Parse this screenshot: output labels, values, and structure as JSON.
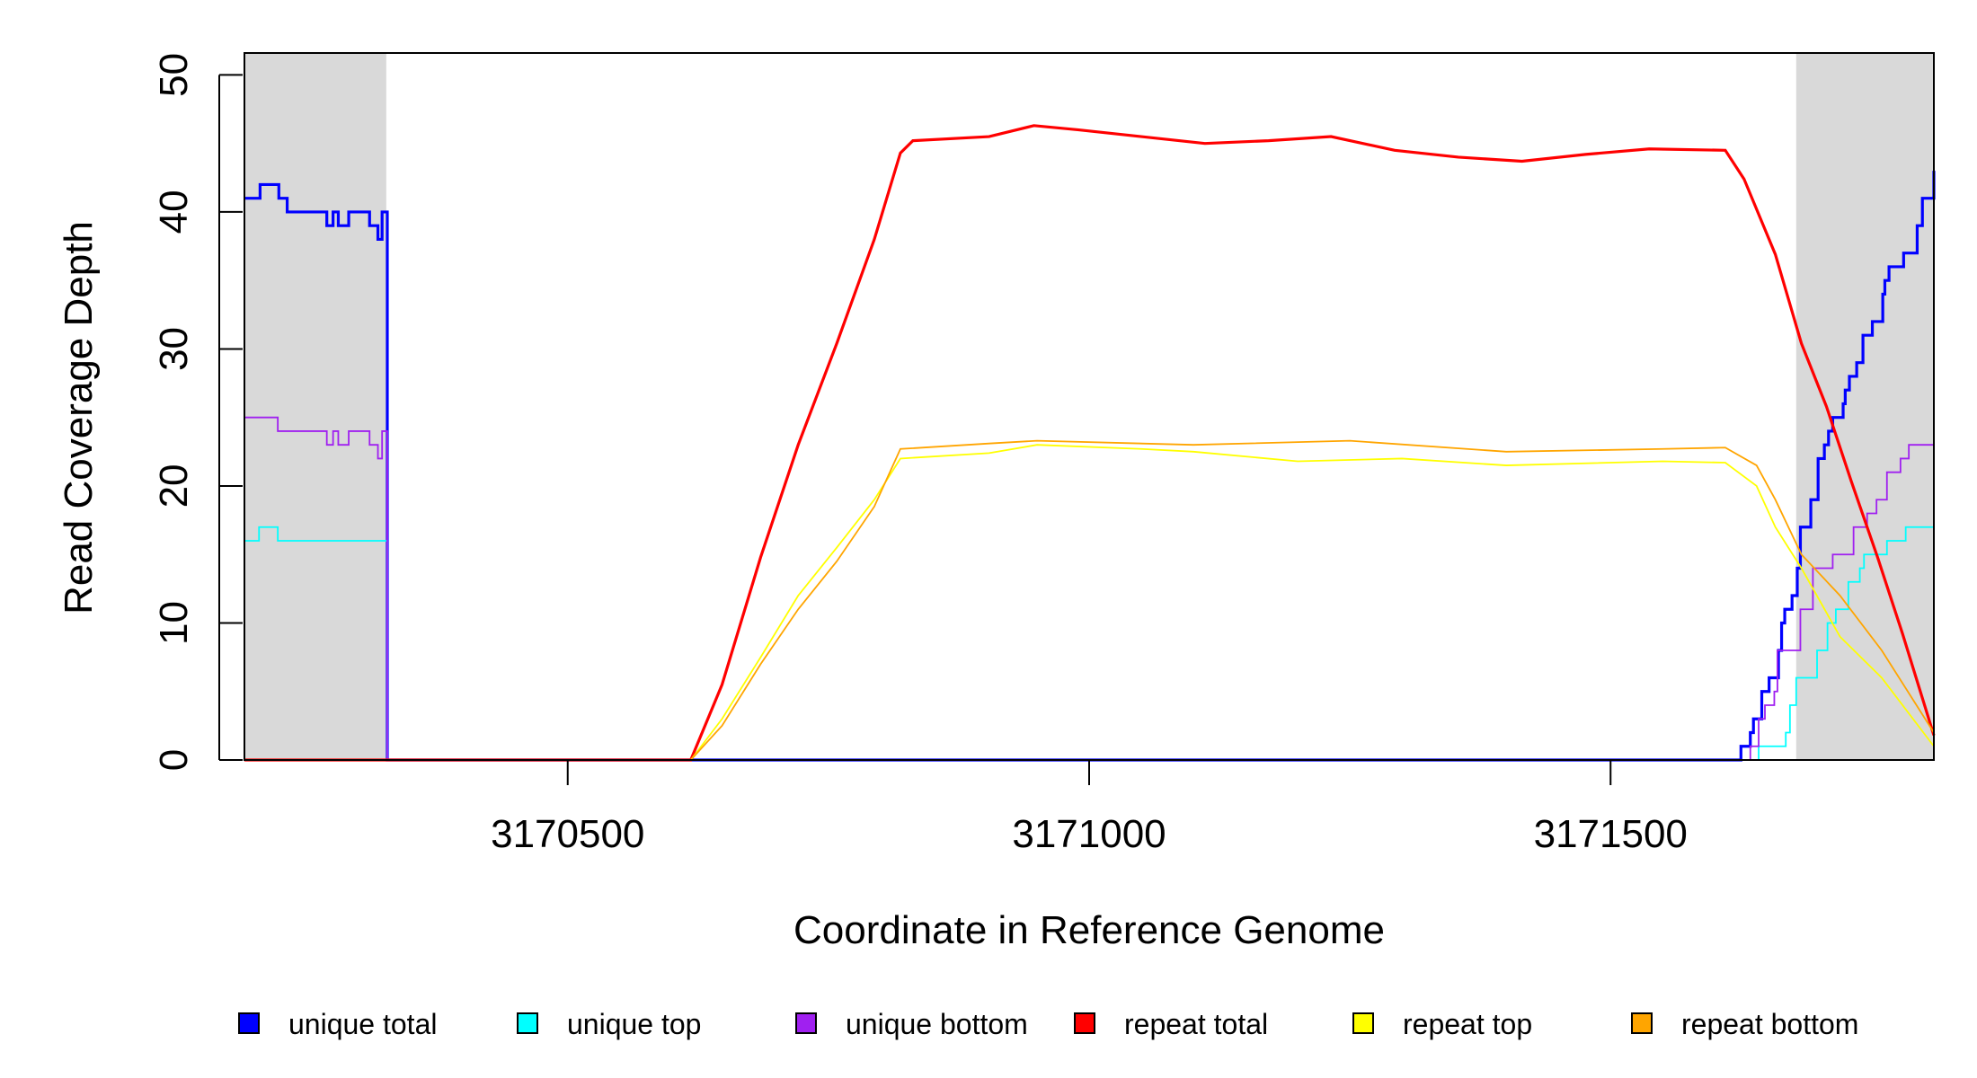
{
  "chart_data": {
    "type": "line",
    "title": "",
    "xlabel": "Coordinate in Reference Genome",
    "ylabel": "Read Coverage Depth",
    "xlim": [
      3170190,
      3171810
    ],
    "ylim": [
      0,
      51.6
    ],
    "x_ticks": [
      3170500,
      3171000,
      3171500
    ],
    "x_tick_labels": [
      "3170500",
      "3171000",
      "3171500"
    ],
    "y_ticks": [
      0,
      10,
      20,
      30,
      40,
      50
    ],
    "y_tick_labels": [
      "0",
      "10",
      "20",
      "30",
      "40",
      "50"
    ],
    "grid": false,
    "legend_position": "bottom",
    "shaded_regions": [
      {
        "x_start": 3170190,
        "x_end": 3170326,
        "color": "#d9d9d9"
      },
      {
        "x_start": 3171678,
        "x_end": 3171810,
        "color": "#d9d9d9"
      }
    ],
    "series": [
      {
        "name": "unique total",
        "color": "#0000ff",
        "style": "step",
        "width": 3.2,
        "x": [
          3170190,
          3170205,
          3170223,
          3170231,
          3170269,
          3170275,
          3170280,
          3170290,
          3170310,
          3170318,
          3170322,
          3170326,
          3170327,
          3171622,
          3171625,
          3171634,
          3171637,
          3171645,
          3171652,
          3171661,
          3171664,
          3171667,
          3171674,
          3171679,
          3171682,
          3171692,
          3171699,
          3171705,
          3171709,
          3171713,
          3171723,
          3171725,
          3171729,
          3171736,
          3171742,
          3171751,
          3171761,
          3171763,
          3171767,
          3171781,
          3171794,
          3171799,
          3171810
        ],
        "y": [
          41,
          42,
          41,
          40,
          39,
          40,
          39,
          40,
          39,
          38,
          40,
          40,
          0,
          0,
          1,
          2,
          3,
          5,
          6,
          8,
          10,
          11,
          12,
          14,
          17,
          19,
          22,
          23,
          24,
          25,
          26,
          27,
          28,
          29,
          31,
          32,
          34,
          35,
          36,
          37,
          39,
          41,
          43
        ]
      },
      {
        "name": "unique top",
        "color": "#00ffff",
        "style": "step",
        "width": 1.8,
        "x": [
          3170190,
          3170204,
          3170222,
          3170326,
          3170327,
          3171622,
          3171642,
          3171668,
          3171672,
          3171678,
          3171698,
          3171708,
          3171716,
          3171728,
          3171739,
          3171743,
          3171765,
          3171783,
          3171810
        ],
        "y": [
          16,
          17,
          16,
          16,
          0,
          0,
          1,
          2,
          4,
          6,
          8,
          10,
          11,
          13,
          14,
          15,
          16,
          17,
          17
        ]
      },
      {
        "name": "unique bottom",
        "color": "#a020f0",
        "style": "step",
        "width": 1.8,
        "x": [
          3170190,
          3170222,
          3170269,
          3170275,
          3170280,
          3170290,
          3170310,
          3170318,
          3170322,
          3170326,
          3170327,
          3171622,
          3171634,
          3171642,
          3171648,
          3171657,
          3171660,
          3171682,
          3171694,
          3171700,
          3171713,
          3171733,
          3171746,
          3171755,
          3171765,
          3171771,
          3171778,
          3171786,
          3171810
        ],
        "y": [
          25,
          24,
          23,
          24,
          23,
          24,
          23,
          22,
          24,
          24,
          0,
          0,
          1,
          3,
          4,
          5,
          8,
          11,
          14,
          14,
          15,
          17,
          18,
          19,
          21,
          21,
          22,
          23,
          26
        ]
      },
      {
        "name": "repeat total",
        "color": "#ff0000",
        "style": "line",
        "width": 3.2,
        "x": [
          3170190,
          3170618,
          3170648,
          3170685,
          3170721,
          3170758,
          3170794,
          3170819,
          3170831,
          3170904,
          3170947,
          3170989,
          3171050,
          3171111,
          3171172,
          3171232,
          3171293,
          3171354,
          3171415,
          3171476,
          3171537,
          3171610,
          3171628,
          3171658,
          3171683,
          3171707,
          3171731,
          3171756,
          3171780,
          3171810
        ],
        "y": [
          0,
          0,
          5.5,
          14.8,
          23,
          30.4,
          38,
          44.3,
          45.2,
          45.5,
          46.3,
          46,
          45.5,
          45,
          45.2,
          45.5,
          44.5,
          44,
          43.7,
          44.2,
          44.6,
          44.5,
          42.4,
          36.9,
          30.4,
          25.8,
          20.3,
          14.8,
          9.2,
          1.8
        ]
      },
      {
        "name": "repeat top",
        "color": "#ffff00",
        "style": "line",
        "width": 1.8,
        "x": [
          3170190,
          3170618,
          3170648,
          3170685,
          3170721,
          3170758,
          3170794,
          3170819,
          3170904,
          3170950,
          3171050,
          3171100,
          3171200,
          3171300,
          3171400,
          3171550,
          3171610,
          3171640,
          3171658,
          3171683,
          3171720,
          3171760,
          3171810
        ],
        "y": [
          0,
          0,
          3,
          7.5,
          12,
          15.5,
          19,
          22,
          22.4,
          23,
          22.7,
          22.5,
          21.8,
          22,
          21.5,
          21.8,
          21.7,
          20,
          17,
          14,
          9,
          6,
          1
        ]
      },
      {
        "name": "repeat bottom",
        "color": "#ffa500",
        "style": "line",
        "width": 1.8,
        "x": [
          3170190,
          3170618,
          3170648,
          3170685,
          3170721,
          3170758,
          3170794,
          3170819,
          3170904,
          3170950,
          3171100,
          3171250,
          3171400,
          3171550,
          3171610,
          3171640,
          3171658,
          3171683,
          3171720,
          3171760,
          3171810
        ],
        "y": [
          0,
          0,
          2.5,
          7,
          11,
          14.5,
          18.5,
          22.7,
          23.1,
          23.3,
          23,
          23.3,
          22.5,
          22.7,
          22.8,
          21.5,
          19,
          15,
          12,
          8,
          2
        ]
      }
    ]
  }
}
